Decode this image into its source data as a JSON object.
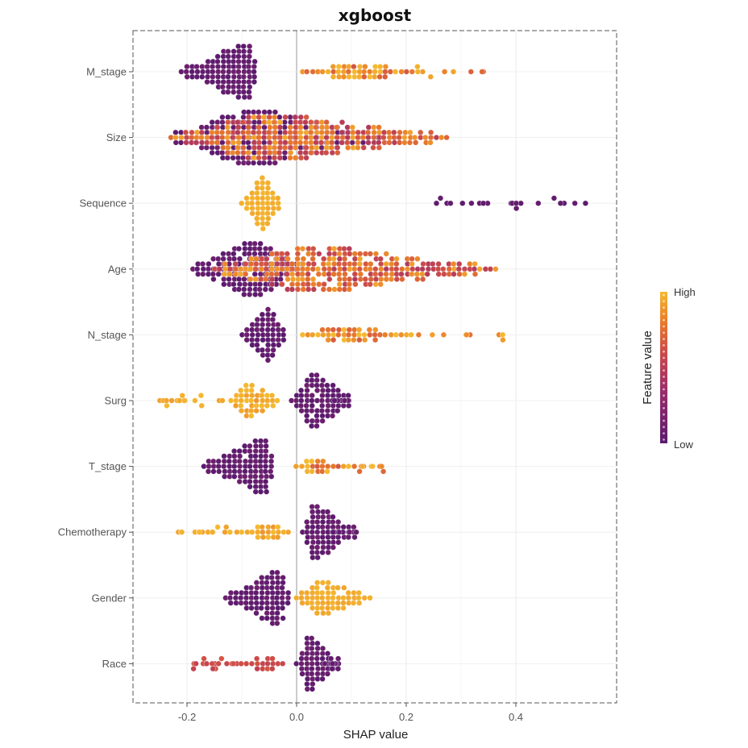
{
  "chart_data": {
    "type": "scatter",
    "subtype": "beeswarm",
    "title": "xgboost",
    "xlabel": "SHAP value",
    "ylabel": "",
    "xlim": [
      -0.29,
      0.58
    ],
    "x_ticks": [
      -0.2,
      0.0,
      0.2,
      0.4
    ],
    "x_tick_labels": [
      "-0.2",
      "0.0",
      "0.2",
      "0.4"
    ],
    "grid": true,
    "features": [
      {
        "name": "M_stage",
        "low_range": [
          -0.21,
          -0.07
        ],
        "low_peak": -0.09,
        "high_range": [
          0.01,
          0.37
        ],
        "high_peak": 0.12
      },
      {
        "name": "Size",
        "low_range": [
          -0.23,
          0.15
        ],
        "low_peak": -0.08,
        "high_range": [
          -0.23,
          0.28
        ],
        "high_peak": -0.05
      },
      {
        "name": "Sequence",
        "low_range": [
          0.25,
          0.55
        ],
        "low_peak": 0.38,
        "high_range": [
          -0.1,
          -0.03
        ],
        "high_peak": -0.06
      },
      {
        "name": "Age",
        "low_range": [
          -0.19,
          0.02
        ],
        "low_peak": -0.08,
        "high_range": [
          -0.15,
          0.37
        ],
        "high_peak": 0.02
      },
      {
        "name": "N_stage",
        "low_range": [
          -0.1,
          -0.02
        ],
        "low_peak": -0.05,
        "high_range": [
          0.01,
          0.38
        ],
        "high_peak": 0.08
      },
      {
        "name": "Surg",
        "low_range": [
          -0.01,
          0.1
        ],
        "low_peak": 0.03,
        "high_range": [
          -0.26,
          -0.03
        ],
        "high_peak": -0.09
      },
      {
        "name": "T_stage",
        "low_range": [
          -0.17,
          -0.04
        ],
        "low_peak": -0.06,
        "high_range": [
          0.0,
          0.18
        ],
        "high_peak": 0.02
      },
      {
        "name": "Chemotherapy",
        "low_range": [
          0.01,
          0.11
        ],
        "low_peak": 0.03,
        "high_range": [
          -0.22,
          -0.01
        ],
        "high_peak": -0.05
      },
      {
        "name": "Gender",
        "low_range": [
          -0.13,
          -0.01
        ],
        "low_peak": -0.03,
        "high_range": [
          0.0,
          0.14
        ],
        "high_peak": 0.03
      },
      {
        "name": "Race",
        "low_range": [
          0.0,
          0.08
        ],
        "low_peak": 0.02,
        "high_range": [
          -0.19,
          -0.02
        ],
        "high_peak": -0.05
      }
    ],
    "legend": {
      "title": "Feature value",
      "high_label": "High",
      "low_label": "Low",
      "position": "right"
    },
    "colors": {
      "low": "#5b1a6e",
      "mid": "#cc4a4a",
      "mid_high": "#e97a2a",
      "high": "#f5b92e"
    }
  }
}
